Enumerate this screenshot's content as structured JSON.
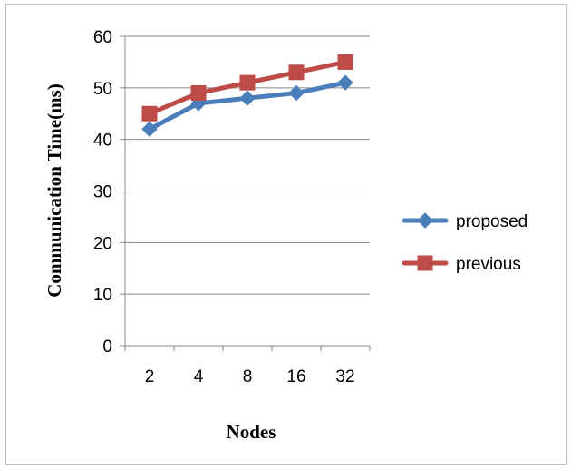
{
  "chart_data": {
    "type": "line",
    "title": "",
    "xlabel": "Nodes",
    "ylabel": "Communication Time(ms)",
    "categories": [
      "2",
      "4",
      "8",
      "16",
      "32"
    ],
    "ylim": [
      0,
      60
    ],
    "yticks": [
      "0",
      "10",
      "20",
      "30",
      "40",
      "50",
      "60"
    ],
    "grid": true,
    "legend": "right",
    "series": [
      {
        "name": "proposed",
        "values": [
          42,
          47,
          48,
          49,
          51
        ],
        "color": "#4a7ebb",
        "marker": "diamond"
      },
      {
        "name": "previous",
        "values": [
          45,
          49,
          51,
          53,
          55
        ],
        "color": "#be4b48",
        "marker": "square"
      }
    ]
  }
}
